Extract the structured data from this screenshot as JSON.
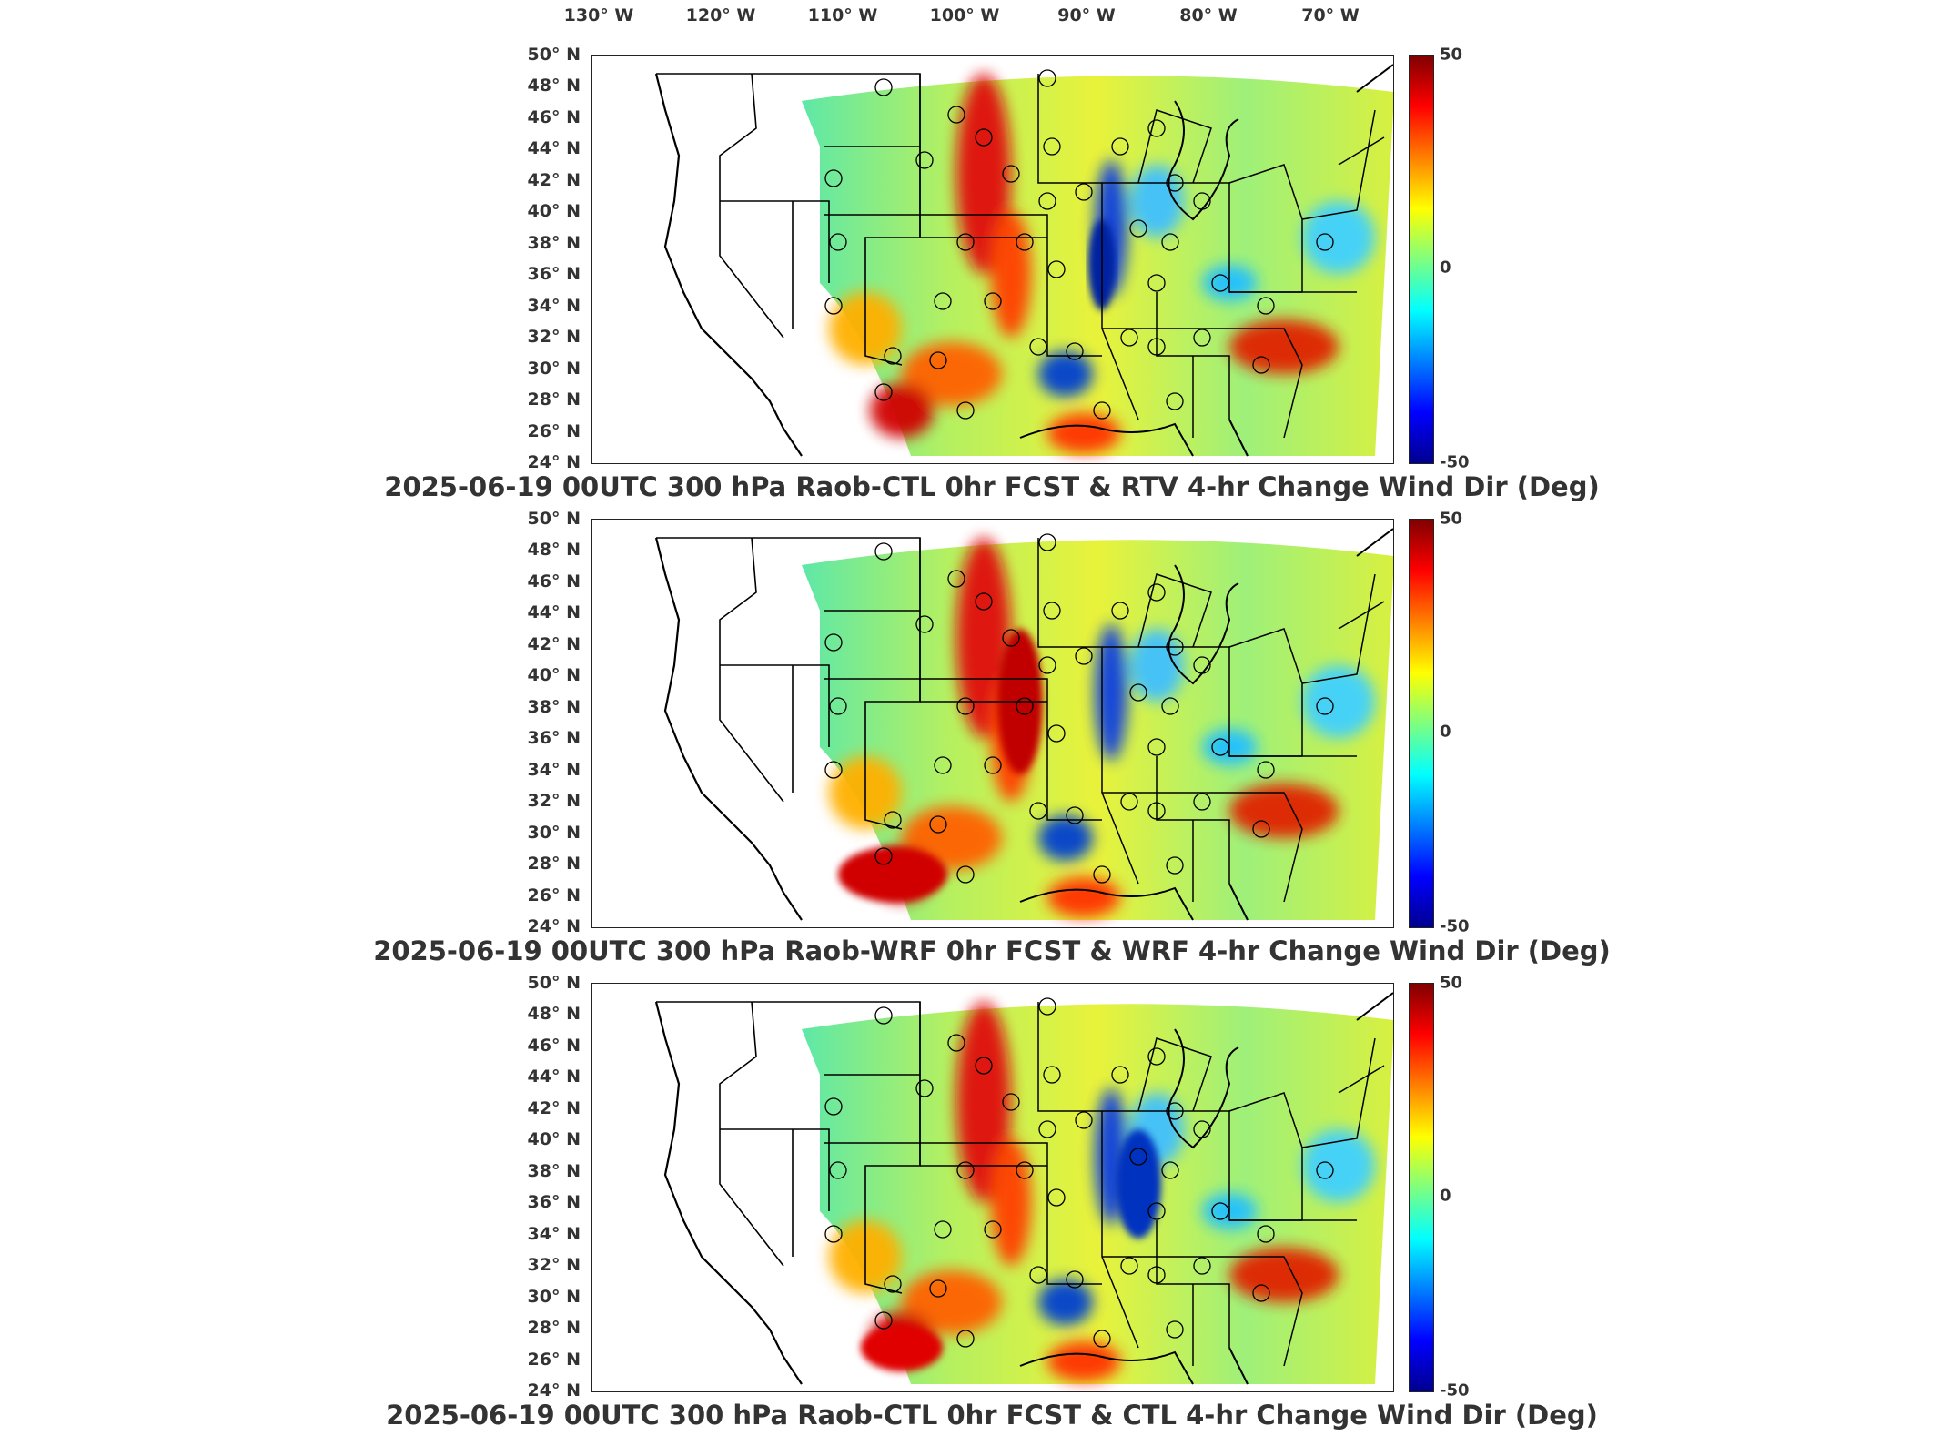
{
  "lon_labels": [
    "130° W",
    "120° W",
    "110° W",
    "100° W",
    "90° W",
    "80° W",
    "70° W"
  ],
  "lat_labels": [
    "50° N",
    "48° N",
    "46° N",
    "44° N",
    "42° N",
    "40° N",
    "38° N",
    "36° N",
    "34° N",
    "32° N",
    "30° N",
    "28° N",
    "26° N",
    "24° N"
  ],
  "colorbar": {
    "max_label": "50",
    "mid_label": "0",
    "min_label": "-50",
    "range": [
      -50,
      50
    ]
  },
  "panels": [
    {
      "title": "2025-06-19 00UTC 300 hPa Raob-CTL 0hr FCST & RTV 4-hr Change Wind Dir (Deg)"
    },
    {
      "title": "2025-06-19 00UTC 300 hPa Raob-WRF 0hr FCST & WRF 4-hr Change Wind Dir (Deg)"
    },
    {
      "title": "2025-06-19 00UTC 300 hPa Raob-CTL 0hr FCST & CTL 4-hr Change Wind Dir (Deg)"
    }
  ]
}
